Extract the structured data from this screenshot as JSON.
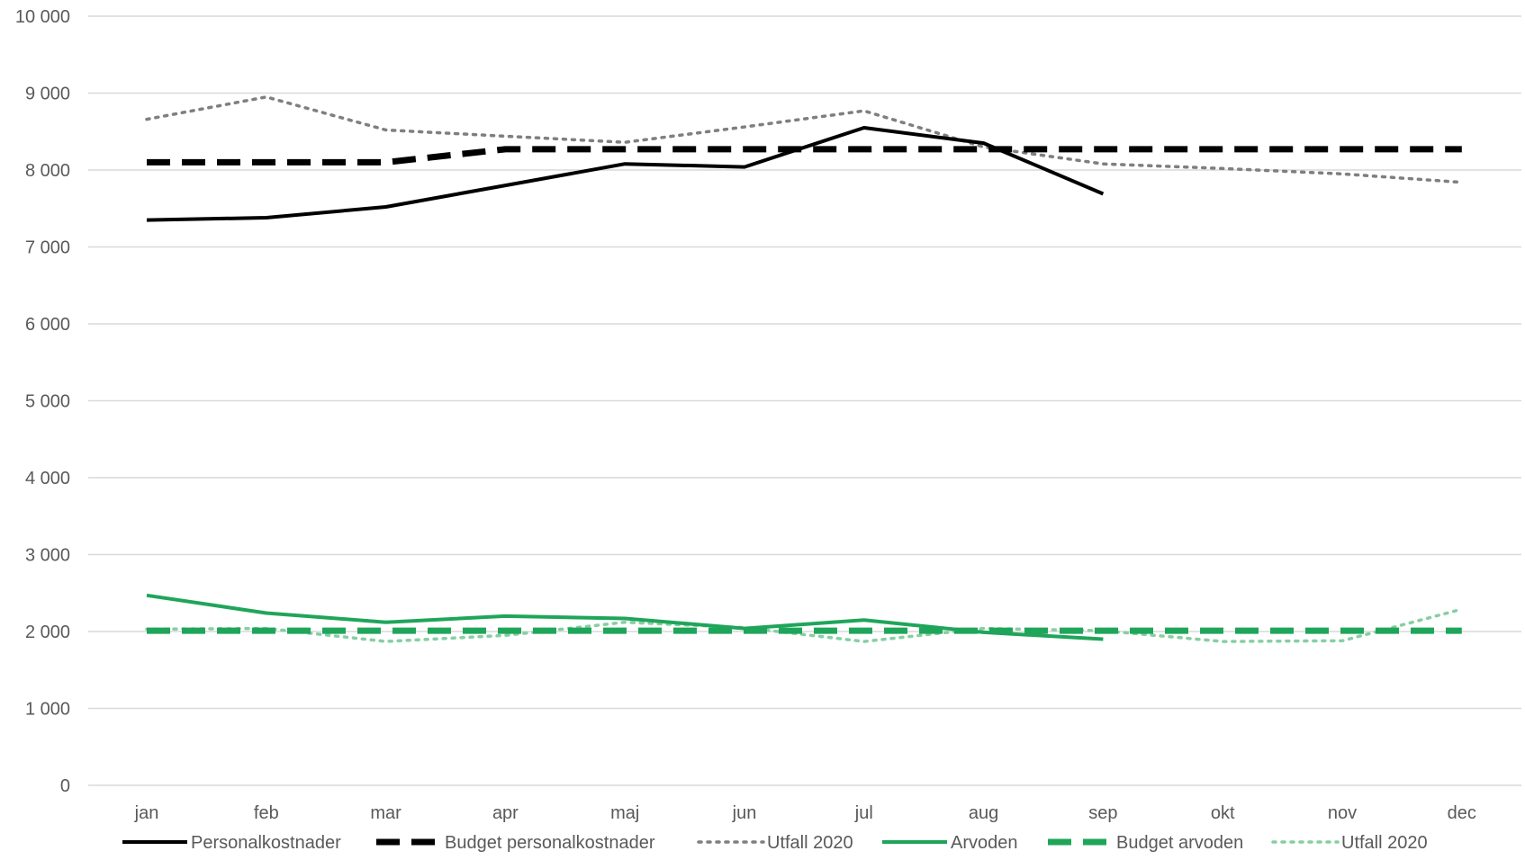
{
  "chart_data": {
    "type": "line",
    "categories": [
      "jan",
      "feb",
      "mar",
      "apr",
      "maj",
      "jun",
      "jul",
      "aug",
      "sep",
      "okt",
      "nov",
      "dec"
    ],
    "ylim": [
      0,
      10000
    ],
    "yticks": [
      0,
      1000,
      2000,
      3000,
      4000,
      5000,
      6000,
      7000,
      8000,
      9000,
      10000
    ],
    "ytick_labels": [
      "0",
      "1 000",
      "2 000",
      "3 000",
      "4 000",
      "5 000",
      "6 000",
      "7 000",
      "8 000",
      "9 000",
      "10 000"
    ],
    "grid": true,
    "legend_position": "bottom",
    "series": [
      {
        "name": "Personalkostnader",
        "color": "#000000",
        "style": "solid",
        "values": [
          7350,
          7380,
          7520,
          7800,
          8080,
          8040,
          8550,
          8350,
          7690,
          null,
          null,
          null
        ]
      },
      {
        "name": "Budget personalkostnader",
        "color": "#000000",
        "style": "dashed",
        "values": [
          8100,
          8100,
          8100,
          8270,
          8270,
          8270,
          8270,
          8270,
          8270,
          8270,
          8270,
          8270
        ]
      },
      {
        "name": "Utfall 2020",
        "color": "#7f7f7f",
        "style": "dotted",
        "values": [
          8660,
          8950,
          8520,
          8440,
          8360,
          8560,
          8770,
          8300,
          8080,
          8020,
          7950,
          7840
        ]
      },
      {
        "name": "Arvoden",
        "color": "#1fa55a",
        "style": "solid",
        "values": [
          2470,
          2240,
          2120,
          2200,
          2170,
          2040,
          2150,
          1990,
          1900,
          null,
          null,
          null
        ]
      },
      {
        "name": "Budget arvoden",
        "color": "#1fa55a",
        "style": "dashed",
        "values": [
          2010,
          2010,
          2010,
          2010,
          2010,
          2010,
          2010,
          2010,
          2010,
          2010,
          2010,
          2010
        ]
      },
      {
        "name": "Utfall 2020",
        "color": "#86cfa2",
        "style": "dotted",
        "values": [
          2030,
          2040,
          1870,
          1950,
          2120,
          2050,
          1870,
          2040,
          2010,
          1870,
          1880,
          2290
        ]
      }
    ]
  }
}
